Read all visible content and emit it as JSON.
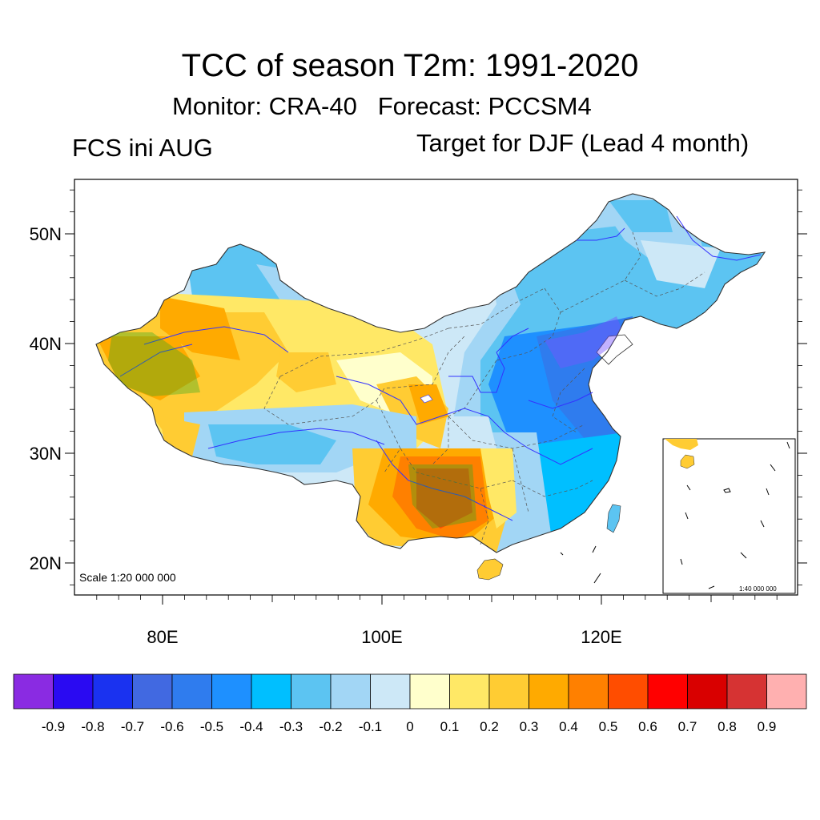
{
  "header": {
    "title": "TCC of season T2m: 1991-2020",
    "subtitle": "Monitor: CRA-40   Forecast: PCCSM4",
    "left_label": "FCS ini AUG",
    "right_label": "Target for DJF (Lead 4 month)"
  },
  "map": {
    "scale_main": "Scale 1:20 000 000",
    "scale_inset": "1:40 000 000",
    "lat_ticks": [
      {
        "value": 50,
        "label": "50N"
      },
      {
        "value": 40,
        "label": "40N"
      },
      {
        "value": 30,
        "label": "30N"
      },
      {
        "value": 20,
        "label": "20N"
      }
    ],
    "lon_ticks": [
      {
        "value": 80,
        "label": "80E"
      },
      {
        "value": 100,
        "label": "100E"
      },
      {
        "value": 120,
        "label": "120E"
      }
    ],
    "lon_range": [
      72,
      138
    ],
    "lat_range": [
      17,
      55
    ]
  },
  "colorbar": {
    "colors": [
      "#8a2be2",
      "#2a0af2",
      "#1a32f0",
      "#4169e1",
      "#2f7cee",
      "#1e90ff",
      "#00bfff",
      "#5cc4f2",
      "#a2d6f5",
      "#cde8f7",
      "#ffffcc",
      "#ffe866",
      "#ffcc33",
      "#ffaa00",
      "#ff8000",
      "#ff4d00",
      "#ff0000",
      "#d90000",
      "#d63333",
      "#ffb0b0"
    ],
    "labels": [
      "-0.9",
      "-0.8",
      "-0.7",
      "-0.6",
      "-0.5",
      "-0.4",
      "-0.3",
      "-0.2",
      "-0.1",
      "0",
      "0.1",
      "0.2",
      "0.3",
      "0.4",
      "0.5",
      "0.6",
      "0.7",
      "0.8",
      "0.9"
    ]
  }
}
